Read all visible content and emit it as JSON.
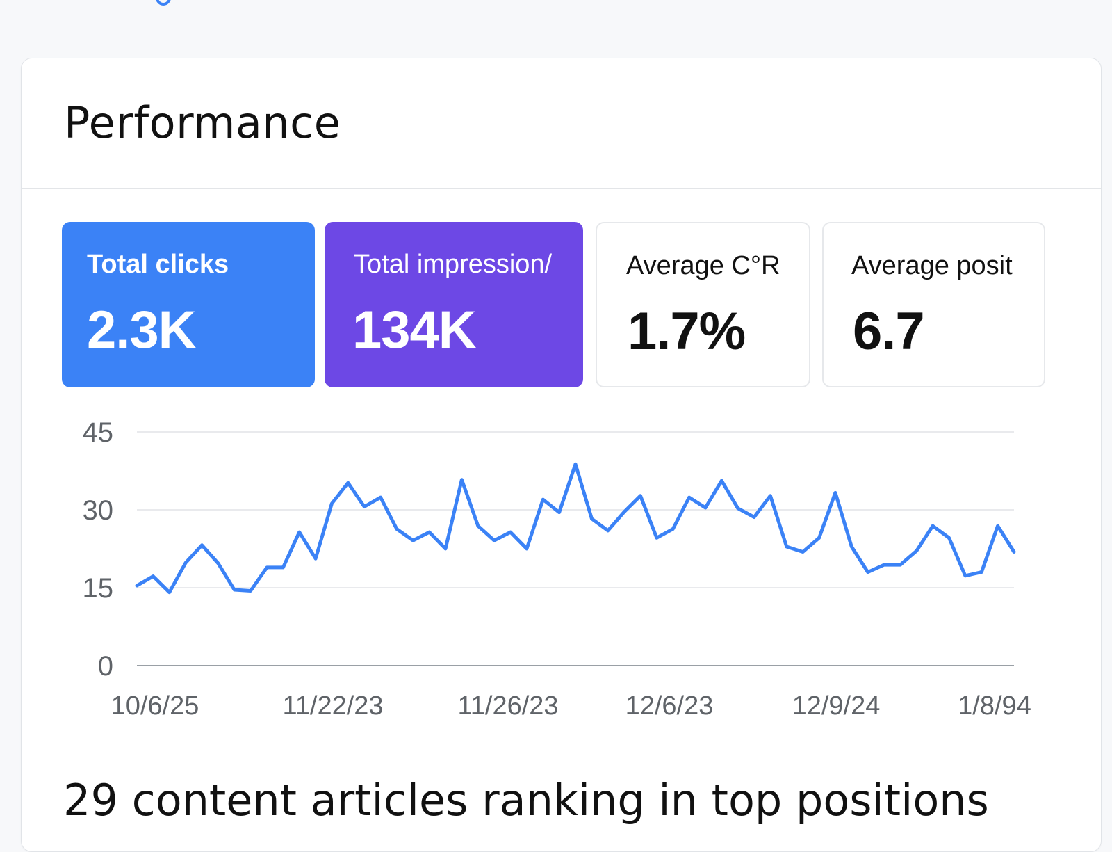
{
  "card": {
    "title": "Performance"
  },
  "metrics": [
    {
      "label": "Total clicks",
      "value": "2.3K"
    },
    {
      "label": "Total impression/",
      "value": "134K"
    },
    {
      "label": "Average C°R",
      "value": "1.7%"
    },
    {
      "label": "Average posit",
      "value": "6.7"
    }
  ],
  "colors": {
    "clicks": "#3b82f6",
    "impressions": "#6d48e5",
    "line": "#3b82f6",
    "grid": "#e2e4e7"
  },
  "chart_data": {
    "type": "line",
    "ylim": [
      0,
      45
    ],
    "yticks": [
      "45",
      "30",
      "15",
      "0"
    ],
    "xtick_labels": [
      "10/6/25",
      "11/22/23",
      "11/26/23",
      "12/6/23",
      "12/9/24",
      "1/8/94"
    ],
    "series": [
      {
        "values": [
          15.4,
          17.2,
          14.1,
          19.8,
          23.2,
          19.7,
          14.6,
          14.4,
          18.9,
          18.9,
          25.7,
          20.6,
          31.2,
          35.2,
          30.6,
          32.4,
          26.3,
          24.1,
          25.7,
          22.5,
          35.8,
          26.9,
          24.1,
          25.7,
          22.5,
          32.0,
          29.5,
          38.8,
          28.3,
          26.0,
          29.6,
          32.7,
          24.6,
          26.3,
          32.4,
          30.4,
          35.6,
          30.3,
          28.6,
          32.7,
          22.9,
          21.9,
          24.6,
          33.3,
          22.9,
          18.0,
          19.4,
          19.4,
          22.1,
          26.9,
          24.6,
          17.3,
          18.0,
          26.9,
          21.9
        ]
      }
    ]
  },
  "bottom": {
    "heading": "29 content articles ranking in top positions"
  }
}
